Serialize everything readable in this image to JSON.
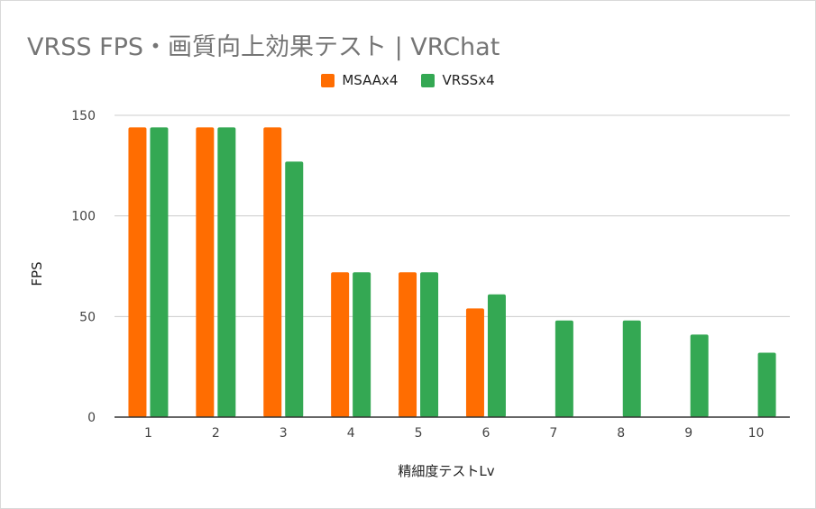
{
  "chart_data": {
    "type": "bar",
    "title": "VRSS FPS・画質向上効果テスト | VRChat",
    "xlabel": "精細度テストLv",
    "ylabel": "FPS",
    "ylim": [
      0,
      150
    ],
    "yticks": [
      0,
      50,
      100,
      150
    ],
    "grid": true,
    "legend_position": "top-center",
    "categories": [
      "1",
      "2",
      "3",
      "4",
      "5",
      "6",
      "7",
      "8",
      "9",
      "10"
    ],
    "series": [
      {
        "name": "MSAAx4",
        "color": "#ff6d01",
        "values": [
          144,
          144,
          144,
          72,
          72,
          54,
          null,
          null,
          null,
          null
        ]
      },
      {
        "name": "VRSSx4",
        "color": "#34a853",
        "values": [
          144,
          144,
          127,
          72,
          72,
          61,
          48,
          48,
          41,
          32
        ]
      }
    ]
  }
}
